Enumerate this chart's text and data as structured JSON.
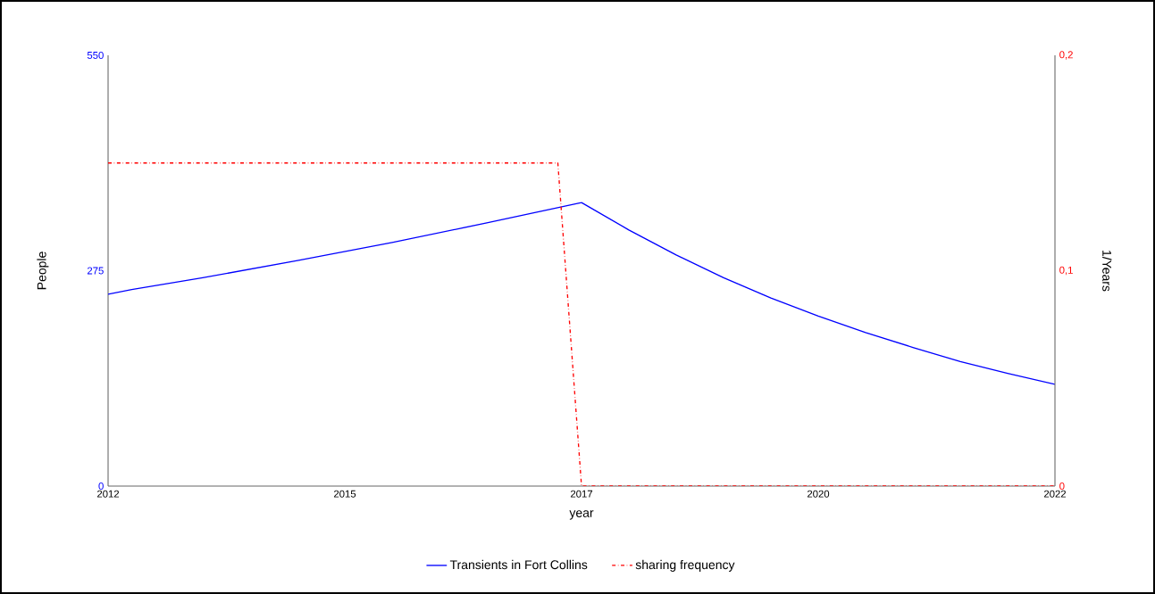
{
  "chart_data": {
    "type": "line",
    "xlabel": "year",
    "ylabel": "People",
    "y2label": "1/Years",
    "xlim": [
      2012,
      2022
    ],
    "xticks": [
      2012,
      {
        "value": 2014.5,
        "label": "2015"
      },
      2017,
      {
        "value": 2019.5,
        "label": "2020"
      },
      2022
    ],
    "ylim": [
      0,
      550
    ],
    "yticks": [
      0,
      275,
      550
    ],
    "y2lim": [
      0,
      0.2
    ],
    "y2ticks": [
      0,
      {
        "value": 0.1,
        "label": "0,1"
      },
      {
        "value": 0.2,
        "label": "0,2"
      }
    ],
    "legend": "bottom",
    "series": [
      {
        "name": "Transients in Fort Collins",
        "color": "#0000ff",
        "line_style": "solid",
        "x": [
          2012,
          2012.25,
          2013,
          2014,
          2015,
          2016,
          2017,
          2017.5,
          2018,
          2018.5,
          2019,
          2019.5,
          2020,
          2020.5,
          2021,
          2021.5,
          2022
        ],
        "values": [
          245,
          251,
          266,
          288,
          311,
          336,
          362,
          327,
          295,
          266,
          240,
          217,
          196,
          177,
          159,
          144,
          130
        ]
      },
      {
        "name": "sharing frequency",
        "color": "#ff0000",
        "line_style": "dashdot",
        "axis": "y2",
        "x": [
          2012,
          2016.75,
          2017,
          2022
        ],
        "values": [
          0.15,
          0.15,
          0,
          0
        ]
      }
    ]
  }
}
